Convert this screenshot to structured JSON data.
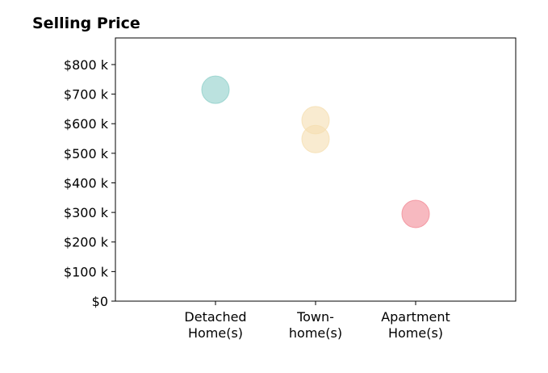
{
  "chart_data": {
    "type": "scatter",
    "title": "Selling Price",
    "xlabel": "",
    "ylabel": "",
    "categories": [
      [
        "Detached",
        "Home(s)"
      ],
      [
        "Town-",
        "home(s)"
      ],
      [
        "Apartment",
        "Home(s)"
      ]
    ],
    "xlim": [
      -1,
      3
    ],
    "ylim": [
      0,
      890000
    ],
    "yticks": [
      0,
      100000,
      200000,
      300000,
      400000,
      500000,
      600000,
      700000,
      800000
    ],
    "ytick_labels": [
      "$0",
      "$100 k",
      "$200 k",
      "$300 k",
      "$400 k",
      "$500 k",
      "$600 k",
      "$700 k",
      "$800 k"
    ],
    "grid": false,
    "points": [
      {
        "category": 0,
        "value": 715000,
        "color": "#8ecfc9"
      },
      {
        "category": 1,
        "value": 612000,
        "color": "#f5deb0"
      },
      {
        "category": 1,
        "value": 548000,
        "color": "#f5deb0"
      },
      {
        "category": 2,
        "value": 295000,
        "color": "#f28b96"
      }
    ]
  }
}
